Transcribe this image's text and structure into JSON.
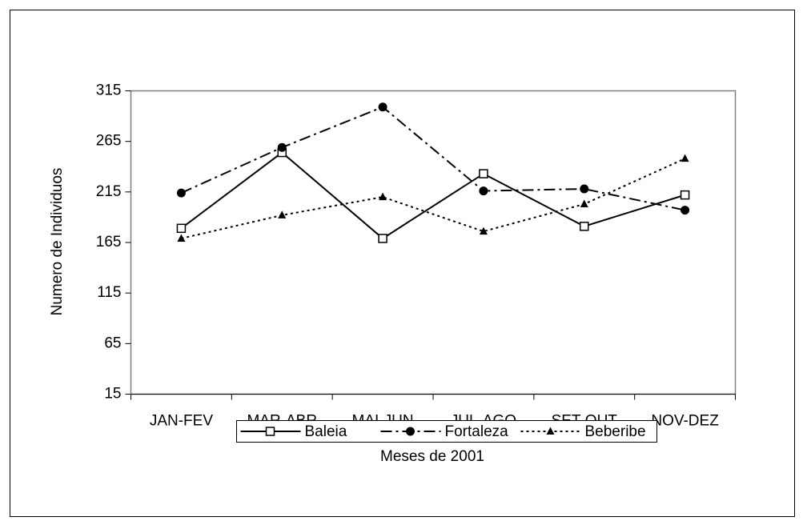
{
  "chart_data": {
    "type": "line",
    "x_label": "Meses de 2001",
    "y_label": "Numero de Individuos",
    "categories": [
      "JAN-FEV",
      "MAR-ABR",
      "MAI-JUN",
      "JUL-AGO",
      "SET-OUT",
      "NOV-DEZ"
    ],
    "series": [
      {
        "name": "Baleia",
        "color": "#000000",
        "line_style": "solid",
        "marker": "square-open",
        "values": [
          179,
          254,
          169,
          233,
          181,
          212
        ]
      },
      {
        "name": "Fortaleza",
        "color": "#000000",
        "line_style": "dash-dot",
        "marker": "circle",
        "values": [
          214,
          259,
          299,
          216,
          218,
          197
        ]
      },
      {
        "name": "Beberibe",
        "color": "#000000",
        "line_style": "dotted",
        "marker": "triangle",
        "values": [
          169,
          192,
          210,
          176,
          203,
          248
        ]
      }
    ],
    "ylim": [
      15,
      315
    ],
    "yticks": [
      15,
      65,
      115,
      165,
      215,
      265,
      315
    ],
    "grid": false,
    "legend": "bottom"
  }
}
